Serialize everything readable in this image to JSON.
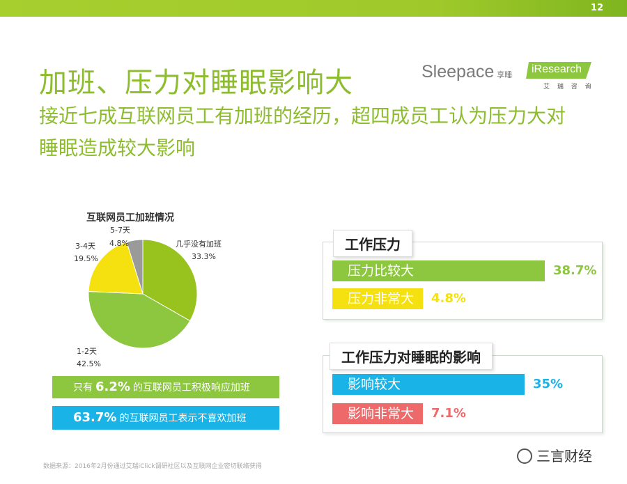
{
  "header": {
    "page_number": "12",
    "title": "加班、压力对睡眠影响大",
    "subtitle": "接近七成互联网员工有加班的经历，超四成员工认为压力大对睡眠造成较大影响",
    "logo_sleepace": "Sleepace",
    "logo_sleepace_cn": "享睡",
    "logo_iresearch": "iResearch",
    "logo_iresearch_cn": "艾 瑞 咨 询"
  },
  "pie_chart_title": "互联网员工加班情况",
  "green_note": {
    "pre": "只有",
    "value": "6.2%",
    "post": "的互联网员工积极响应加班"
  },
  "blue_note": {
    "value": "63.7%",
    "post": "的互联网员工表示不喜欢加班"
  },
  "pressure_panel": {
    "header": "工作压力"
  },
  "sleep_panel": {
    "header": "工作压力对睡眠的影响"
  },
  "footer": "数据来源：2016年2月份通过艾瑞iClick调研社区以及互联网企业密切联络获得",
  "watermark": "三言财经",
  "colors": {
    "green": "#8dc63f",
    "light_green": "#98c21e",
    "yellow": "#f5e10f",
    "gray": "#9a9a9a",
    "blue": "#1ab3e8",
    "red": "#ee6a6a"
  },
  "chart_data": [
    {
      "type": "pie",
      "title": "互联网员工加班情况",
      "slices": [
        {
          "label": "几乎没有加班",
          "value": 33.3
        },
        {
          "label": "1-2天",
          "value": 42.5
        },
        {
          "label": "3-4天",
          "value": 19.5
        },
        {
          "label": "5-7天",
          "value": 4.8
        }
      ]
    },
    {
      "type": "bar",
      "title": "工作压力",
      "categories": [
        "压力比较大",
        "压力非常大"
      ],
      "values": [
        38.7,
        4.8
      ],
      "value_labels": [
        "38.7%",
        "4.8%"
      ]
    },
    {
      "type": "bar",
      "title": "工作压力对睡眠的影响",
      "categories": [
        "影响较大",
        "影响非常大"
      ],
      "values": [
        35,
        7.1
      ],
      "value_labels": [
        "35%",
        "7.1%"
      ]
    }
  ]
}
